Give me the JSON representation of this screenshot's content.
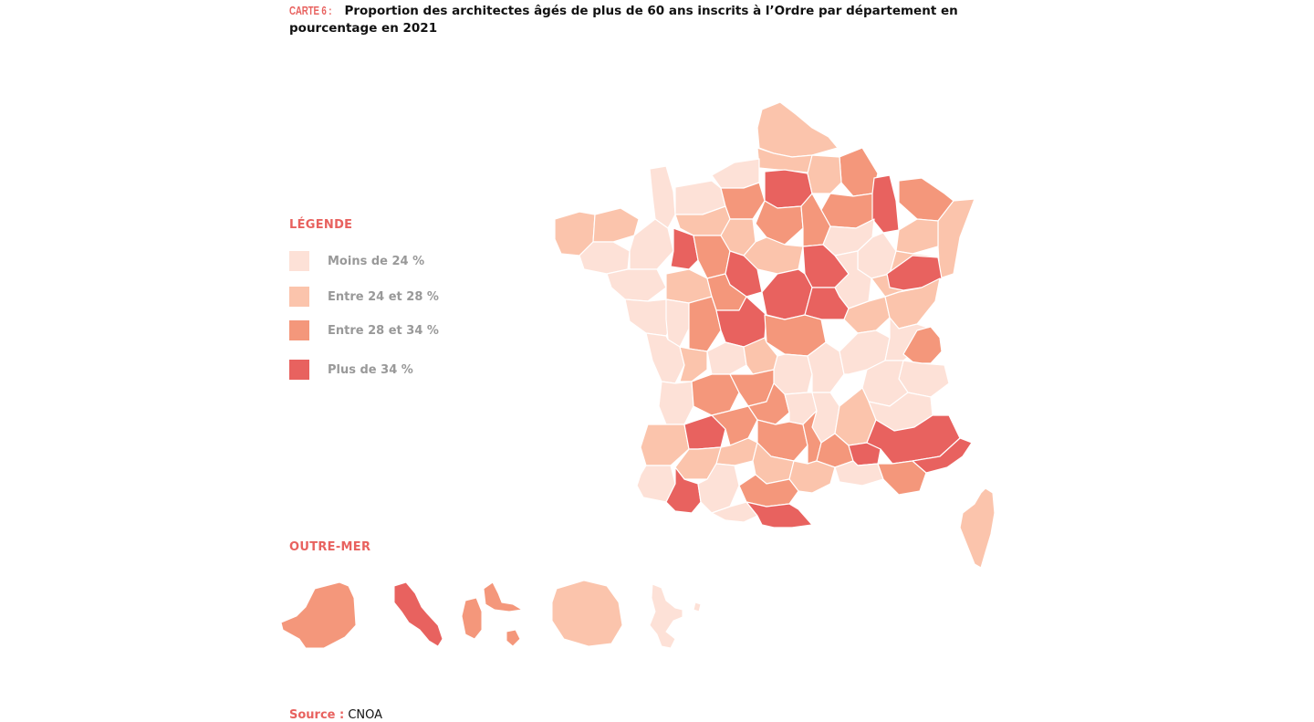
{
  "title": {
    "label": "CARTE 6 :",
    "text": "Proportion des architectes âgés de plus de 60 ans inscrits à l’Ordre par département en pourcentage en 2021"
  },
  "legend": {
    "heading": "LÉGENDE",
    "items": [
      {
        "label": "Moins de 24 %",
        "color": "#fde1d7"
      },
      {
        "label": "Entre 24 et 28 %",
        "color": "#fbc4ac"
      },
      {
        "label": "Entre 28 et 34 %",
        "color": "#f4977b"
      },
      {
        "label": "Plus de 34 %",
        "color": "#e8625f"
      }
    ]
  },
  "outremer": {
    "heading": "OUTRE-MER",
    "territories": [
      {
        "name": "Guyane",
        "class": 2
      },
      {
        "name": "Martinique",
        "class": 3
      },
      {
        "name": "Guadeloupe",
        "class": 2
      },
      {
        "name": "La Réunion",
        "class": 1
      },
      {
        "name": "Mayotte",
        "class": 0
      }
    ]
  },
  "source": {
    "label": "Source :",
    "text": "CNOA"
  }
}
